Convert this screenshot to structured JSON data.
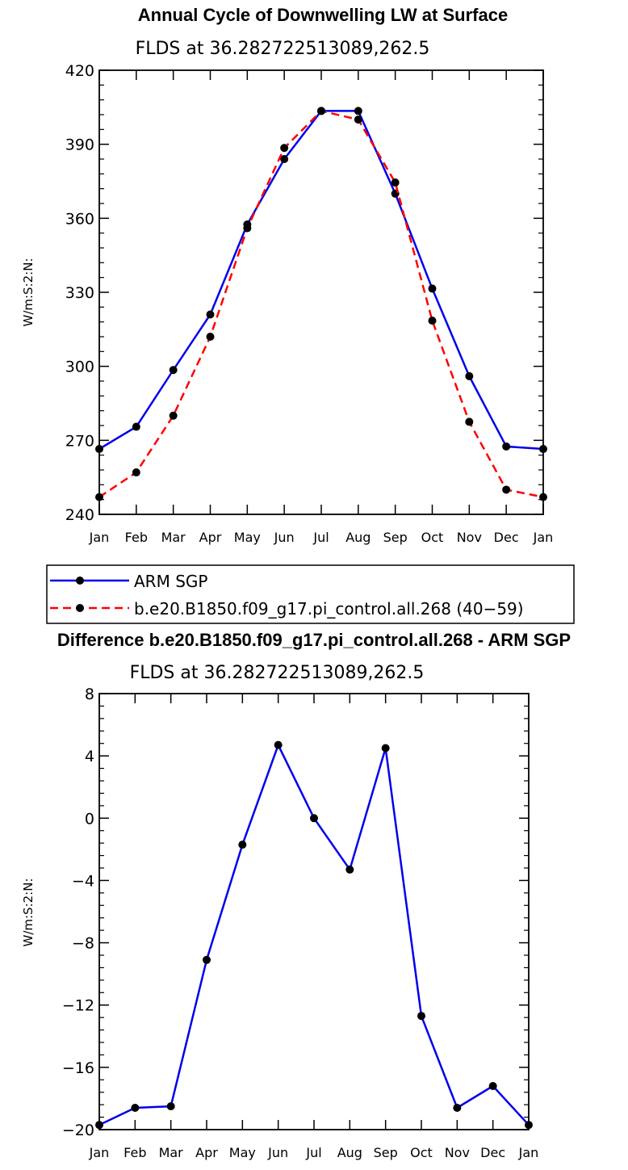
{
  "chart_data": [
    {
      "type": "line",
      "title": "Annual Cycle of Downwelling LW at Surface",
      "subtitle": "FLDS at 36.282722513089,262.5",
      "ylabel": "W/m:S:2:N:",
      "xlabel": "",
      "categories": [
        "Jan",
        "Feb",
        "Mar",
        "Apr",
        "May",
        "Jun",
        "Jul",
        "Aug",
        "Sep",
        "Oct",
        "Nov",
        "Dec",
        "Jan"
      ],
      "ylim": [
        240,
        420
      ],
      "yticks": [
        240,
        270,
        300,
        330,
        360,
        390,
        420
      ],
      "series": [
        {
          "name": "ARM SGP",
          "color": "#0000ee",
          "dash": "solid",
          "values": [
            266.5,
            275.5,
            298.5,
            321,
            357.5,
            384,
            403.5,
            403.5,
            370,
            331.5,
            296,
            267.5,
            266.5
          ]
        },
        {
          "name": "b.e20.B1850.f09_g17.pi_control.all.268 (40−59)",
          "color": "#ff0000",
          "dash": "dashed",
          "values": [
            247,
            257,
            280,
            312,
            356,
            388.5,
            403.5,
            400,
            374.5,
            318.5,
            277.5,
            250,
            247
          ]
        }
      ],
      "legend": {
        "position": "below"
      }
    },
    {
      "type": "line",
      "title": "Difference b.e20.B1850.f09_g17.pi_control.all.268 - ARM SGP",
      "subtitle": "FLDS at 36.282722513089,262.5",
      "ylabel": "W/m:S:2:N:",
      "xlabel": "",
      "categories": [
        "Jan",
        "Feb",
        "Mar",
        "Apr",
        "May",
        "Jun",
        "Jul",
        "Aug",
        "Sep",
        "Oct",
        "Nov",
        "Dec",
        "Jan"
      ],
      "ylim": [
        -20,
        8
      ],
      "yticks": [
        -20,
        -16,
        -12,
        -8,
        -4,
        0,
        4,
        8
      ],
      "series": [
        {
          "name": "Difference",
          "color": "#0000ee",
          "dash": "solid",
          "values": [
            -19.7,
            -18.6,
            -18.5,
            -9.1,
            -1.7,
            4.7,
            0.0,
            -3.3,
            4.5,
            -12.7,
            -18.6,
            -17.2,
            -19.7
          ]
        }
      ]
    }
  ]
}
